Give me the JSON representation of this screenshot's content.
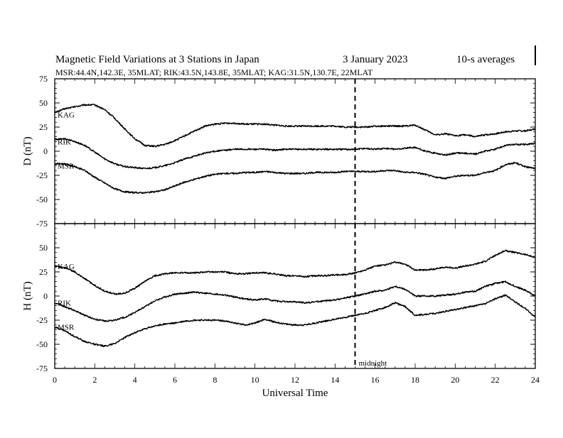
{
  "header": {
    "title": "Magnetic Field Variations at 3 Stations in Japan",
    "date": "3   January  2023",
    "averaging": "10-s averages",
    "stations_line": "MSR:44.4N,142.3E, 35MLAT;  RIK:43.5N,143.8E, 35MLAT;  KAG:31.5N,130.7E, 22MLAT"
  },
  "chart_data": [
    {
      "type": "line",
      "panel": "D",
      "ylabel": "D (nT)",
      "xlabel": "",
      "xlim": [
        0,
        24
      ],
      "ylim": [
        -75,
        75
      ],
      "yticks": [
        75,
        50,
        25,
        0,
        -25,
        -50,
        -75
      ],
      "grid": false,
      "marker": {
        "x": 15,
        "style": "dashed"
      },
      "series": [
        {
          "name": "KAG",
          "color": "#000000",
          "x": [
            0,
            0.5,
            1,
            1.5,
            2,
            2.5,
            3,
            3.5,
            4,
            4.5,
            5,
            5.5,
            6,
            6.5,
            7,
            7.5,
            8,
            8.5,
            9,
            9.5,
            10,
            10.5,
            11,
            11.5,
            12,
            12.5,
            13,
            13.5,
            14,
            14.5,
            15,
            15.5,
            16,
            16.5,
            17,
            17.5,
            18,
            18.5,
            19,
            19.5,
            20,
            20.5,
            21,
            21.5,
            22,
            22.5,
            23,
            23.5,
            24
          ],
          "values": [
            40,
            44,
            46,
            48,
            48,
            43,
            34,
            23,
            13,
            6,
            5,
            7,
            11,
            16,
            21,
            26,
            28,
            29,
            29,
            28,
            28,
            28,
            27,
            26,
            26,
            26,
            26,
            26,
            26,
            25,
            25,
            25,
            26,
            26,
            26,
            26,
            27,
            22,
            17,
            18,
            16,
            17,
            15,
            17,
            18,
            20,
            21,
            21,
            23
          ]
        },
        {
          "name": "RIK",
          "color": "#000000",
          "x": [
            0,
            0.5,
            1,
            1.5,
            2,
            2.5,
            3,
            3.5,
            4,
            4.5,
            5,
            5.5,
            6,
            6.5,
            7,
            7.5,
            8,
            8.5,
            9,
            9.5,
            10,
            10.5,
            11,
            11.5,
            12,
            12.5,
            13,
            13.5,
            14,
            14.5,
            15,
            15.5,
            16,
            16.5,
            17,
            17.5,
            18,
            18.5,
            19,
            19.5,
            20,
            20.5,
            21,
            21.5,
            22,
            22.5,
            23,
            23.5,
            24
          ],
          "values": [
            12,
            13,
            10,
            6,
            -1,
            -8,
            -13,
            -16,
            -17,
            -18,
            -17,
            -15,
            -12,
            -8,
            -5,
            -2,
            0,
            1,
            2,
            2,
            2,
            2,
            1,
            2,
            2,
            2,
            2,
            2,
            2,
            2,
            2,
            3,
            2,
            3,
            2,
            3,
            4,
            0,
            -2,
            -4,
            -2,
            -2,
            -3,
            0,
            2,
            6,
            7,
            7,
            8
          ]
        },
        {
          "name": "MSR",
          "color": "#000000",
          "x": [
            0,
            0.5,
            1,
            1.5,
            2,
            2.5,
            3,
            3.5,
            4,
            4.5,
            5,
            5.5,
            6,
            6.5,
            7,
            7.5,
            8,
            8.5,
            9,
            9.5,
            10,
            10.5,
            11,
            11.5,
            12,
            12.5,
            13,
            13.5,
            14,
            14.5,
            15,
            15.5,
            16,
            16.5,
            17,
            17.5,
            18,
            18.5,
            19,
            19.5,
            20,
            20.5,
            21,
            21.5,
            22,
            22.5,
            23,
            23.5,
            24
          ],
          "values": [
            -13,
            -13,
            -16,
            -20,
            -27,
            -33,
            -39,
            -42,
            -43,
            -43,
            -42,
            -40,
            -36,
            -32,
            -29,
            -26,
            -24,
            -23,
            -23,
            -22,
            -22,
            -21,
            -22,
            -23,
            -23,
            -23,
            -22,
            -22,
            -22,
            -21,
            -21,
            -21,
            -21,
            -20,
            -20,
            -22,
            -22,
            -24,
            -27,
            -28,
            -26,
            -25,
            -25,
            -22,
            -20,
            -14,
            -12,
            -16,
            -18
          ]
        }
      ]
    },
    {
      "type": "line",
      "panel": "H",
      "ylabel": "H (nT)",
      "xlabel": "Universal Time",
      "xlim": [
        0,
        24
      ],
      "ylim": [
        -75,
        75
      ],
      "xticks": [
        0,
        2,
        4,
        6,
        8,
        10,
        12,
        14,
        16,
        18,
        20,
        22,
        24
      ],
      "yticks": [
        50,
        25,
        0,
        -25,
        -50,
        -75
      ],
      "grid": false,
      "marker": {
        "x": 15,
        "style": "dashed",
        "label": "midnight"
      },
      "series": [
        {
          "name": "KAG",
          "color": "#000000",
          "x": [
            0,
            0.5,
            1,
            1.5,
            2,
            2.5,
            3,
            3.5,
            4,
            4.5,
            5,
            5.5,
            6,
            6.5,
            7,
            7.5,
            8,
            8.5,
            9,
            9.5,
            10,
            10.5,
            11,
            11.5,
            12,
            12.5,
            13,
            13.5,
            14,
            14.5,
            15,
            15.5,
            16,
            16.5,
            17,
            17.5,
            18,
            18.5,
            19,
            19.5,
            20,
            20.5,
            21,
            21.5,
            22,
            22.5,
            23,
            23.5,
            24
          ],
          "values": [
            31,
            29,
            25,
            18,
            11,
            5,
            2,
            3,
            8,
            15,
            21,
            23,
            24,
            24,
            24,
            25,
            25,
            25,
            23,
            23,
            24,
            24,
            23,
            21,
            21,
            20,
            21,
            21,
            22,
            22,
            24,
            27,
            31,
            32,
            35,
            33,
            27,
            27,
            28,
            30,
            29,
            31,
            33,
            36,
            42,
            47,
            45,
            43,
            40
          ]
        },
        {
          "name": "RIK",
          "color": "#000000",
          "x": [
            0,
            0.5,
            1,
            1.5,
            2,
            2.5,
            3,
            3.5,
            4,
            4.5,
            5,
            5.5,
            6,
            6.5,
            7,
            7.5,
            8,
            8.5,
            9,
            9.5,
            10,
            10.5,
            11,
            11.5,
            12,
            12.5,
            13,
            13.5,
            14,
            14.5,
            15,
            15.5,
            16,
            16.5,
            17,
            17.5,
            18,
            18.5,
            19,
            19.5,
            20,
            20.5,
            21,
            21.5,
            22,
            22.5,
            23,
            23.5,
            24
          ],
          "values": [
            -7,
            -11,
            -15,
            -20,
            -24,
            -26,
            -25,
            -22,
            -17,
            -11,
            -5,
            -1,
            2,
            3,
            4,
            3,
            2,
            1,
            -1,
            -3,
            -4,
            -3,
            -5,
            -6,
            -6,
            -7,
            -6,
            -5,
            -4,
            -2,
            0,
            2,
            5,
            6,
            10,
            7,
            0,
            0,
            0,
            1,
            2,
            4,
            5,
            10,
            13,
            15,
            10,
            6,
            0
          ]
        },
        {
          "name": "MSR",
          "color": "#000000",
          "x": [
            0,
            0.5,
            1,
            1.5,
            2,
            2.5,
            3,
            3.5,
            4,
            4.5,
            5,
            5.5,
            6,
            6.5,
            7,
            7.5,
            8,
            8.5,
            9,
            9.5,
            10,
            10.5,
            11,
            11.5,
            12,
            12.5,
            13,
            13.5,
            14,
            14.5,
            15,
            15.5,
            16,
            16.5,
            17,
            17.5,
            18,
            18.5,
            19,
            19.5,
            20,
            20.5,
            21,
            21.5,
            22,
            22.5,
            23,
            23.5,
            24
          ],
          "values": [
            -32,
            -36,
            -42,
            -47,
            -50,
            -52,
            -49,
            -43,
            -38,
            -34,
            -31,
            -29,
            -28,
            -26,
            -25,
            -25,
            -25,
            -26,
            -28,
            -30,
            -28,
            -24,
            -27,
            -29,
            -30,
            -30,
            -28,
            -26,
            -24,
            -22,
            -20,
            -18,
            -15,
            -12,
            -7,
            -11,
            -20,
            -19,
            -18,
            -16,
            -14,
            -12,
            -10,
            -8,
            -3,
            1,
            -6,
            -13,
            -22
          ]
        }
      ]
    }
  ]
}
